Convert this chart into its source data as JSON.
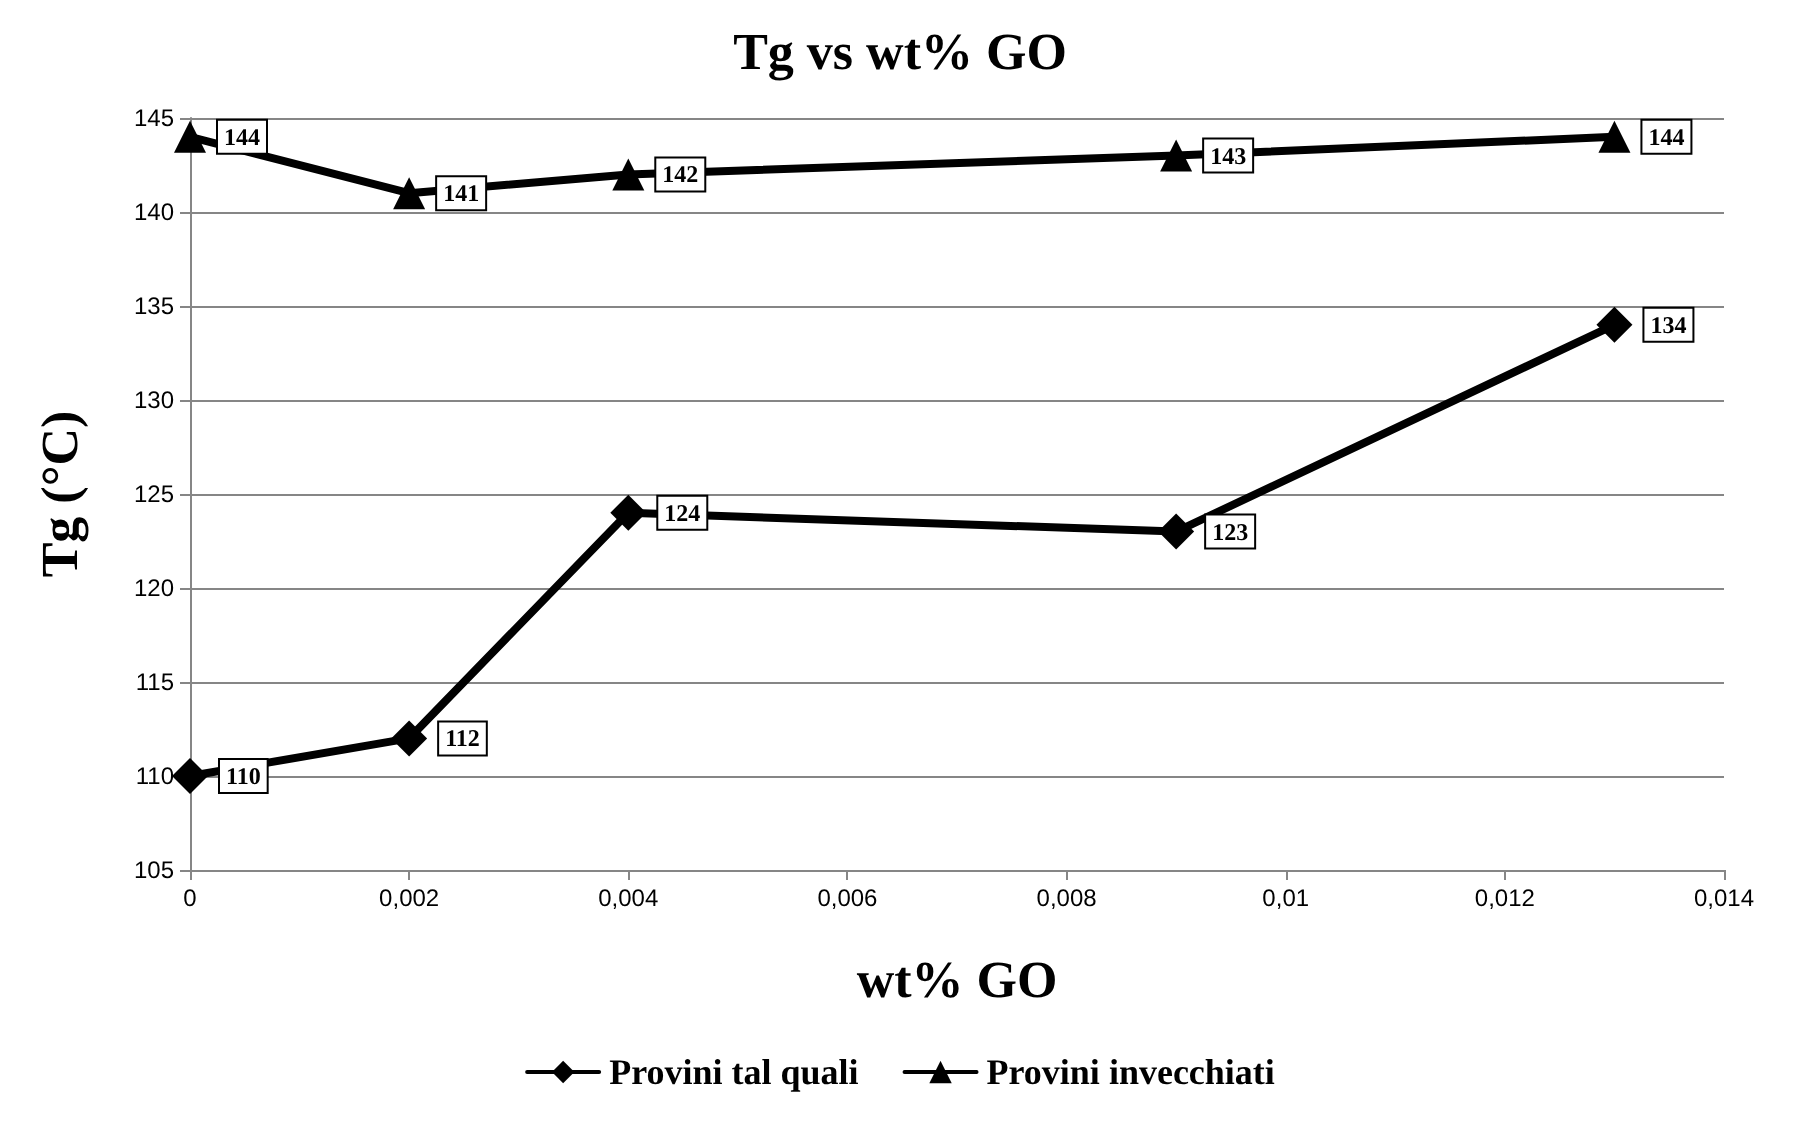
{
  "chart_data": {
    "type": "line",
    "title": "Tg vs wt% GO",
    "xlabel": "wt% GO",
    "ylabel": "Tg (°C)",
    "x": [
      0,
      0.002,
      0.004,
      0.009,
      0.013
    ],
    "series": [
      {
        "name": "Provini tal quali",
        "color": "#000000",
        "marker": "diamond",
        "values": [
          110,
          112,
          124,
          123,
          134
        ]
      },
      {
        "name": "Provini invecchiati",
        "color": "#000000",
        "marker": "triangle",
        "values": [
          144,
          141,
          142,
          143,
          144
        ]
      }
    ],
    "xlim": [
      0,
      0.014
    ],
    "xticks": [
      {
        "value": 0,
        "label": "0"
      },
      {
        "value": 0.002,
        "label": "0,002"
      },
      {
        "value": 0.004,
        "label": "0,004"
      },
      {
        "value": 0.006,
        "label": "0,006"
      },
      {
        "value": 0.008,
        "label": "0,008"
      },
      {
        "value": 0.01,
        "label": "0,01"
      },
      {
        "value": 0.012,
        "label": "0,012"
      },
      {
        "value": 0.014,
        "label": "0,014"
      }
    ],
    "ylim": [
      105,
      145
    ],
    "yticks": [
      105,
      110,
      115,
      120,
      125,
      130,
      135,
      140,
      145
    ],
    "grid": "y",
    "legend": "bottom",
    "data_labels": true,
    "line_style": "solid"
  }
}
